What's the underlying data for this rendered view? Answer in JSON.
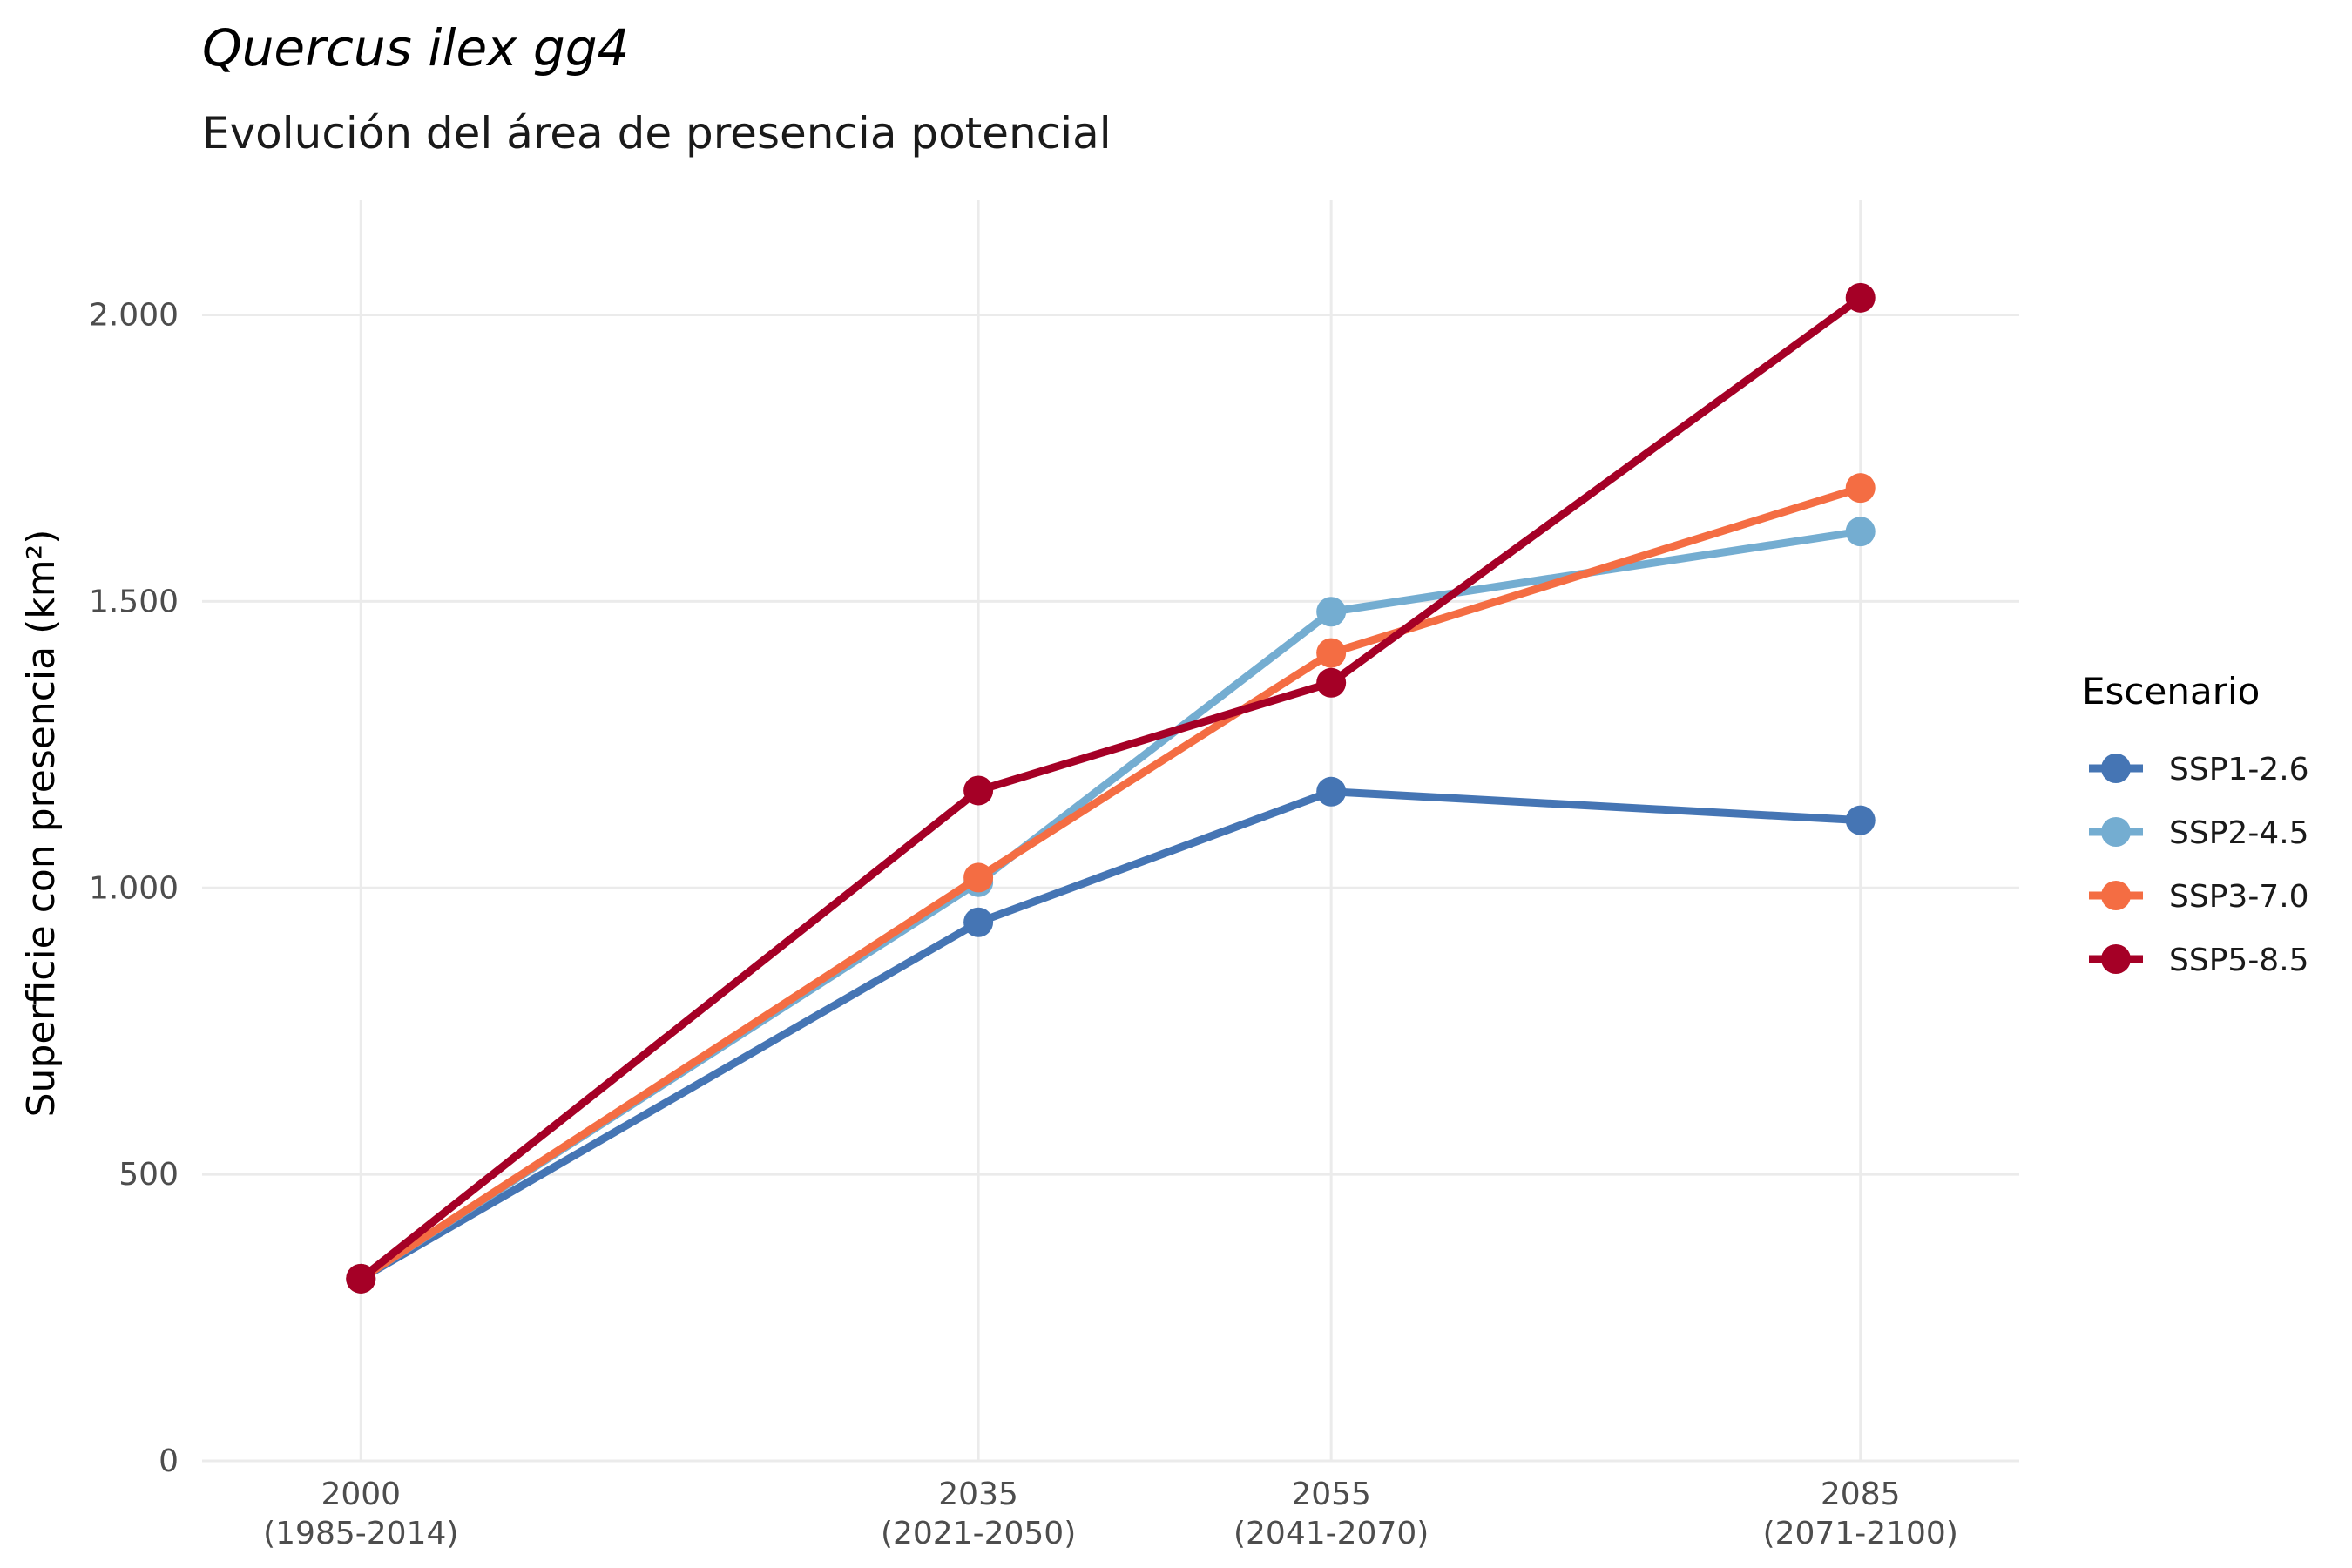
{
  "chart_data": {
    "type": "line",
    "title": "Quercus ilex gg4",
    "subtitle": "Evolución del área de presencia potencial",
    "ylabel": "Superficie con presencia (km²)",
    "x": [
      2000,
      2035,
      2055,
      2085
    ],
    "x_tick_labels": [
      [
        "2000",
        "(1985-2014)"
      ],
      [
        "2035",
        "(2021-2050)"
      ],
      [
        "2055",
        "(2041-2070)"
      ],
      [
        "2085",
        "(2071-2100)"
      ]
    ],
    "xlim": [
      1991,
      2094
    ],
    "ylim": [
      0,
      2200
    ],
    "y_ticks": [
      0,
      500,
      1000,
      1500,
      2000
    ],
    "y_tick_labels": [
      "0",
      "500",
      "1.000",
      "1.500",
      "2.000"
    ],
    "grid": true,
    "legend": {
      "title": "Escenario",
      "placement": "right"
    },
    "series": [
      {
        "name": "SSP1-2.6",
        "color": "#4575b4",
        "values": [
          318,
          940,
          1168,
          1118
        ]
      },
      {
        "name": "SSP2-4.5",
        "color": "#74add1",
        "values": [
          318,
          1010,
          1482,
          1622
        ]
      },
      {
        "name": "SSP3-7.0",
        "color": "#f46d43",
        "values": [
          318,
          1018,
          1410,
          1698
        ]
      },
      {
        "name": "SSP5-8.5",
        "color": "#a50026",
        "values": [
          318,
          1170,
          1358,
          2030
        ]
      }
    ]
  }
}
